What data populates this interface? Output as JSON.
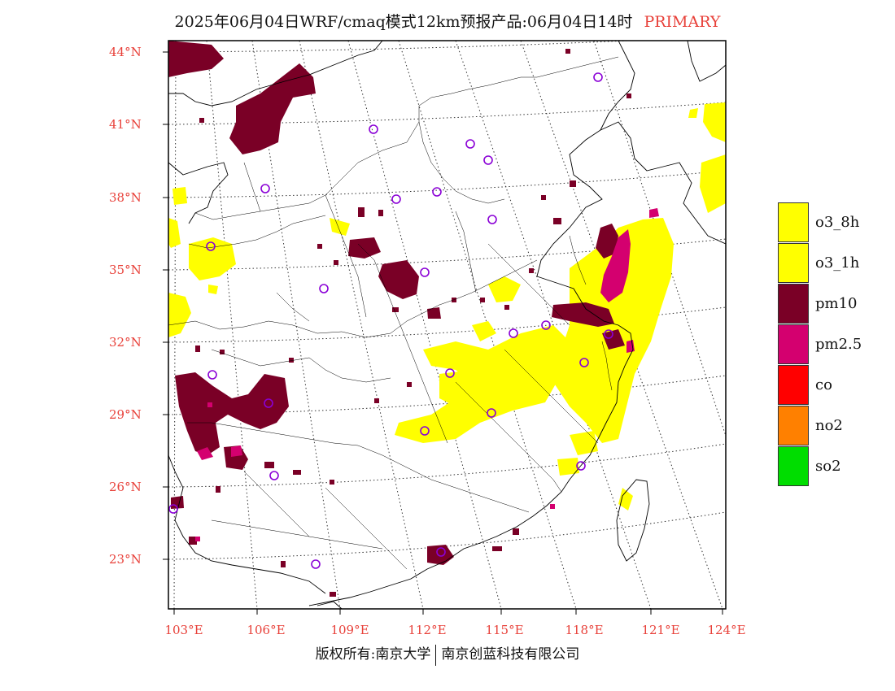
{
  "title": {
    "main": "2025年06月04日WRF/cmaq模式12km预报产品:06月04日14时",
    "tag": "PRIMARY"
  },
  "map": {
    "lat_labels": [
      "44°N",
      "41°N",
      "38°N",
      "35°N",
      "32°N",
      "29°N",
      "26°N",
      "23°N"
    ],
    "lon_labels": [
      "103°E",
      "106°E",
      "109°E",
      "112°E",
      "115°E",
      "118°E",
      "121°E",
      "124°E"
    ],
    "label_color": "#e8413a",
    "pollutant_colors": {
      "o3": "#ffff00",
      "pm10": "#7a0026",
      "pm25": "#d4006f",
      "station": "#8a00d6"
    }
  },
  "legend": [
    {
      "label": "o3_8h",
      "color": "#ffff00"
    },
    {
      "label": "o3_1h",
      "color": "#ffff00"
    },
    {
      "label": "pm10",
      "color": "#7a0026"
    },
    {
      "label": "pm2.5",
      "color": "#d4006f"
    },
    {
      "label": "co",
      "color": "#ff0000"
    },
    {
      "label": "no2",
      "color": "#ff8000"
    },
    {
      "label": "so2",
      "color": "#00dd00"
    }
  ],
  "footer": {
    "left": "版权所有:南京大学",
    "right": "南京创蓝科技有限公司"
  }
}
